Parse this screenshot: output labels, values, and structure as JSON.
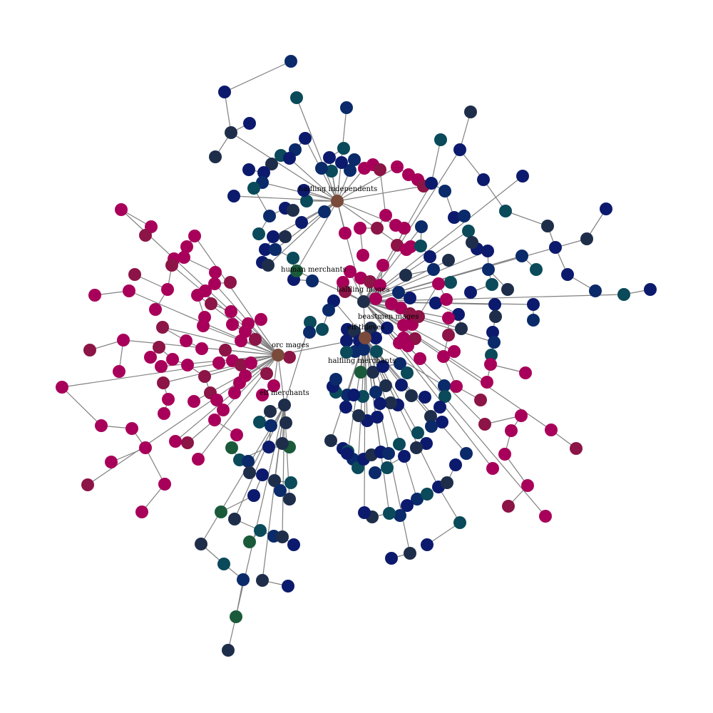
{
  "labels": {
    "halfling_independents": "halfling independents",
    "human_merchants": "human merchants",
    "halfling_mages": "halfling mages",
    "beastmen_mages": "beastmen mages",
    "elf_thieves": "elf thieves",
    "orc_mages": "orc mages",
    "halfling_merchants": "halfling merchants",
    "elf_merchants": "elf merchants"
  },
  "colors": {
    "edge": "#808080",
    "magenta": "#a8005a",
    "crimson": "#8c1446",
    "navy": "#0c1a6e",
    "blue": "#0a2a6a",
    "teal": "#0a4a5a",
    "slate": "#1e2e4a",
    "green": "#1a5a3a",
    "brown": "#7a4a3a"
  }
}
